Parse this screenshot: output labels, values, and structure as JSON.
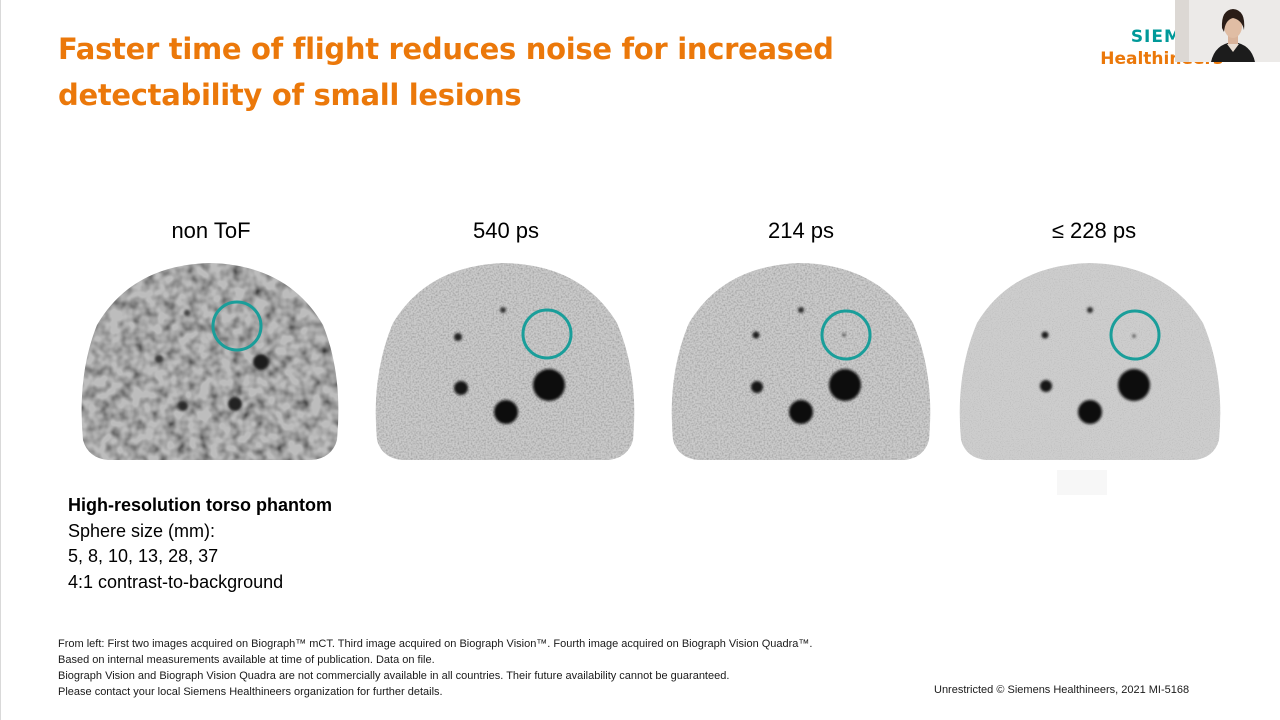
{
  "title": {
    "line1": "Faster time of flight reduces noise for increased",
    "line2": "detectability of small lesions"
  },
  "logo": {
    "line1": "SIEMENS",
    "line2": "Healthineers"
  },
  "panels": [
    {
      "label": "non ToF"
    },
    {
      "label": "540 ps"
    },
    {
      "label": "214 ps"
    },
    {
      "label": "≤ 228 ps"
    }
  ],
  "phantom_info": {
    "heading": "High-resolution torso phantom",
    "sphere_label": "Sphere size (mm):",
    "sphere_sizes": "5, 8, 10, 13, 28, 37",
    "contrast": "4:1 contrast-to-background"
  },
  "footnotes": {
    "line1": "From left: First two images acquired on Biograph™ mCT. Third image acquired on Biograph Vision™. Fourth image acquired on Biograph Vision Quadra™.",
    "line2": "Based on internal measurements available at time of publication. Data on file.",
    "line3": "Biograph Vision and Biograph Vision Quadra are not commercially available in all countries. Their future availability cannot be guaranteed.",
    "line4": "Please contact your local Siemens Healthineers organization for further details."
  },
  "copyright": "Unrestricted © Siemens Healthineers, 2021  MI-5168",
  "colors": {
    "title": "#eb780a",
    "logo_teal": "#009999",
    "circle_marker": "#1a9e9a",
    "phantom_gray": "#c9c9c9"
  }
}
